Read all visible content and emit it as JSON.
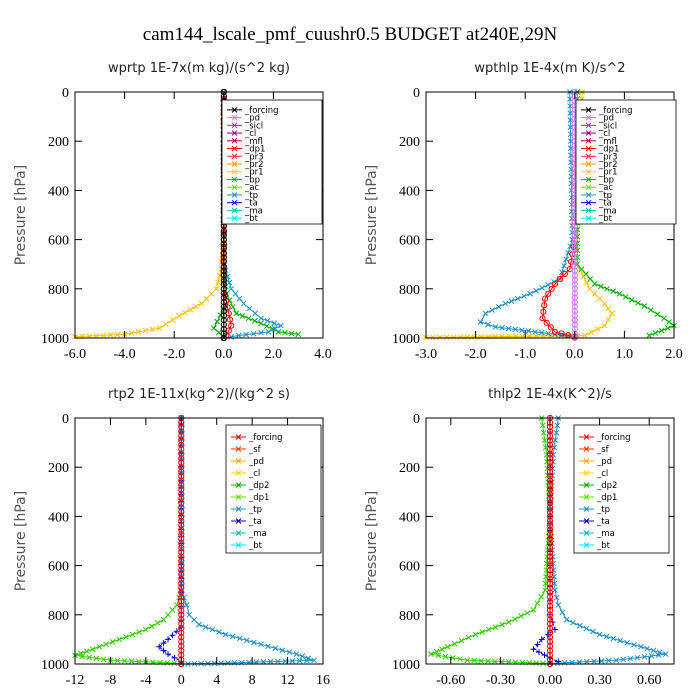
{
  "figure_title": "cam144_lscale_pmf_cuushr0.5  BUDGET at240E,29N",
  "y_axis_label": "Pressure [hPa]",
  "chart_data": [
    {
      "type": "line",
      "title": "wprtp   1E-7x(m kg)/(s^2 kg)",
      "ylabel": "Pressure [hPa]",
      "xlim": [
        -6,
        4
      ],
      "xticks": [
        -6,
        -4,
        -2,
        0,
        2,
        4
      ],
      "xtick_labels": [
        "-6.0",
        "-4.0",
        "-2.0",
        "0.0",
        "2.0",
        "4.0"
      ],
      "ylim": [
        1000,
        0
      ],
      "yticks": [
        0,
        200,
        400,
        600,
        800,
        1000
      ],
      "legend": [
        "_forcing",
        "_pd",
        "_sicl",
        "_cl",
        "_mfl",
        "_dp1",
        "_pr3",
        "_pr2",
        "_pr1",
        "_bp",
        "_ac",
        "_tp",
        "_ta",
        "_ma",
        "_bt"
      ],
      "legend_colors": [
        "#000000",
        "#c77fe0",
        "#8a2be2",
        "#8b008b",
        "#a0003c",
        "#ff0000",
        "#ff3333",
        "#ff9900",
        "#ffd000",
        "#00b000",
        "#66dd00",
        "#1e90c8",
        "#0000cc",
        "#00bfbf",
        "#00e0ff"
      ],
      "series": [
        {
          "name": "_pr1",
          "color": "#ffc000",
          "marker": "x",
          "points": [
            [
              0,
              0
            ],
            [
              0,
              600
            ],
            [
              -0.1,
              720
            ],
            [
              -0.3,
              800
            ],
            [
              -0.9,
              860
            ],
            [
              -1.8,
              910
            ],
            [
              -2.6,
              960
            ],
            [
              -4.0,
              985
            ],
            [
              -6.0,
              995
            ]
          ]
        },
        {
          "name": "_ac",
          "color": "#00b000",
          "marker": "x",
          "points": [
            [
              0,
              0
            ],
            [
              0,
              700
            ],
            [
              0.1,
              820
            ],
            [
              0.5,
              900
            ],
            [
              1.5,
              940
            ],
            [
              2.2,
              975
            ],
            [
              3.0,
              985
            ]
          ]
        },
        {
          "name": "_tp",
          "color": "#1e90c8",
          "marker": "x",
          "points": [
            [
              0,
              0
            ],
            [
              0,
              700
            ],
            [
              0.3,
              800
            ],
            [
              0.8,
              860
            ],
            [
              1.5,
              920
            ],
            [
              2.3,
              950
            ],
            [
              1.8,
              975
            ],
            [
              0.6,
              990
            ],
            [
              0,
              1000
            ]
          ]
        },
        {
          "name": "_dp1",
          "color": "#ff0000",
          "marker": "o",
          "points": [
            [
              0,
              0
            ],
            [
              0,
              800
            ],
            [
              0.2,
              900
            ],
            [
              0.3,
              950
            ],
            [
              0.1,
              990
            ],
            [
              0,
              1000
            ]
          ]
        },
        {
          "name": "_bp",
          "color": "#00a000",
          "marker": "x",
          "points": [
            [
              0,
              880
            ],
            [
              -0.4,
              960
            ],
            [
              0,
              995
            ]
          ]
        },
        {
          "name": "_forcing",
          "color": "#000000",
          "marker": "o",
          "points": [
            [
              0,
              0
            ],
            [
              0,
              1000
            ]
          ]
        }
      ]
    },
    {
      "type": "line",
      "title": "wpthlp   1E-4x(m K)/s^2",
      "ylabel": "Pressure [hPa]",
      "xlim": [
        -3,
        2
      ],
      "xticks": [
        -3,
        -2,
        -1,
        0,
        1,
        2
      ],
      "xtick_labels": [
        "-3.0",
        "-2.0",
        "-1.0",
        "0.0",
        "1.0",
        "2.0"
      ],
      "ylim": [
        1000,
        0
      ],
      "yticks": [
        0,
        200,
        400,
        600,
        800,
        1000
      ],
      "legend": [
        "_forcing",
        "_pd",
        "_sicl",
        "_cl",
        "_mfl",
        "_dp1",
        "_pr3",
        "_pr2",
        "_pr1",
        "_bp",
        "_ac",
        "_tp",
        "_ta",
        "_ma",
        "_bt"
      ],
      "legend_colors": [
        "#000000",
        "#c77fe0",
        "#8a2be2",
        "#8b008b",
        "#a0003c",
        "#ff0000",
        "#ff3333",
        "#ff9900",
        "#ffd000",
        "#00b000",
        "#66dd00",
        "#1e90c8",
        "#0000cc",
        "#00bfbf",
        "#00e0ff"
      ],
      "series": [
        {
          "name": "_pr1",
          "color": "#ffc000",
          "marker": "x",
          "points": [
            [
              0.15,
              0
            ],
            [
              0.1,
              200
            ],
            [
              0.05,
              500
            ],
            [
              0.05,
              700
            ],
            [
              0.3,
              800
            ],
            [
              0.6,
              860
            ],
            [
              0.75,
              900
            ],
            [
              0.6,
              950
            ],
            [
              0.2,
              990
            ],
            [
              -3.0,
              998
            ]
          ]
        },
        {
          "name": "_ac",
          "color": "#00b000",
          "marker": "x",
          "points": [
            [
              0.05,
              0
            ],
            [
              0.05,
              700
            ],
            [
              0.4,
              780
            ],
            [
              0.9,
              820
            ],
            [
              1.4,
              870
            ],
            [
              1.8,
              920
            ],
            [
              2.0,
              950
            ],
            [
              1.5,
              990
            ]
          ]
        },
        {
          "name": "_tp",
          "color": "#1e90c8",
          "marker": "x",
          "points": [
            [
              -0.1,
              0
            ],
            [
              -0.05,
              600
            ],
            [
              -0.3,
              760
            ],
            [
              -0.9,
              820
            ],
            [
              -1.4,
              860
            ],
            [
              -1.8,
              900
            ],
            [
              -1.9,
              935
            ],
            [
              -1.6,
              955
            ],
            [
              -0.8,
              975
            ],
            [
              0,
              995
            ]
          ]
        },
        {
          "name": "_dp1",
          "color": "#ff0000",
          "marker": "o",
          "points": [
            [
              0,
              600
            ],
            [
              -0.1,
              720
            ],
            [
              -0.4,
              780
            ],
            [
              -0.6,
              840
            ],
            [
              -0.65,
              920
            ],
            [
              -0.4,
              975
            ],
            [
              0,
              995
            ]
          ]
        },
        {
          "name": "_forcing",
          "color": "#c77fe0",
          "marker": "o",
          "points": [
            [
              0,
              0
            ],
            [
              0,
              1000
            ]
          ]
        }
      ]
    },
    {
      "type": "line",
      "title": "rtp2   1E-11x(kg^2)/(kg^2 s)",
      "ylabel": "Pressure [hPa]",
      "xlim": [
        -12,
        16
      ],
      "xticks": [
        -12,
        -8,
        -4,
        0,
        4,
        8,
        12,
        16
      ],
      "xtick_labels": [
        "-12",
        "-8",
        "-4",
        "0",
        "4",
        "8",
        "12",
        "16"
      ],
      "ylim": [
        1000,
        0
      ],
      "yticks": [
        0,
        200,
        400,
        600,
        800,
        1000
      ],
      "legend": [
        "_forcing",
        "_sf",
        "_pd",
        "_cl",
        "_dp2",
        "_dp1",
        "_tp",
        "_ta",
        "_ma",
        "_bt"
      ],
      "legend_colors": [
        "#ff0000",
        "#ff3300",
        "#ffa500",
        "#ffd000",
        "#00b000",
        "#66dd00",
        "#1e90c8",
        "#0000cc",
        "#00bfbf",
        "#00e0ff"
      ],
      "series": [
        {
          "name": "_dp1",
          "color": "#33cc00",
          "marker": "x",
          "points": [
            [
              0,
              0
            ],
            [
              0,
              700
            ],
            [
              -0.5,
              760
            ],
            [
              -2,
              820
            ],
            [
              -4,
              860
            ],
            [
              -7,
              900
            ],
            [
              -10,
              940
            ],
            [
              -12,
              965
            ],
            [
              -8,
              985
            ],
            [
              0,
              998
            ]
          ]
        },
        {
          "name": "_tp",
          "color": "#1e90c8",
          "marker": "x",
          "points": [
            [
              0,
              0
            ],
            [
              0,
              700
            ],
            [
              0.6,
              760
            ],
            [
              0.9,
              800
            ],
            [
              2,
              840
            ],
            [
              5,
              880
            ],
            [
              9,
              920
            ],
            [
              13,
              960
            ],
            [
              15,
              985
            ],
            [
              6,
              995
            ],
            [
              0,
              1000
            ]
          ]
        },
        {
          "name": "_ta",
          "color": "#0000cc",
          "marker": "+",
          "points": [
            [
              0,
              0
            ],
            [
              0,
              850
            ],
            [
              -1.5,
              900
            ],
            [
              -2.5,
              930
            ],
            [
              -1.5,
              960
            ],
            [
              0,
              990
            ]
          ]
        },
        {
          "name": "_forcing",
          "color": "#ff0000",
          "marker": "o",
          "points": [
            [
              0,
              0
            ],
            [
              0,
              1000
            ]
          ]
        }
      ]
    },
    {
      "type": "line",
      "title": "thlp2   1E-4x(K^2)/s",
      "ylabel": "Pressure [hPa]",
      "xlim": [
        -0.75,
        0.75
      ],
      "xticks": [
        -0.6,
        -0.3,
        0,
        0.3,
        0.6
      ],
      "xtick_labels": [
        "-0.60",
        "-0.30",
        "0.00",
        "0.30",
        "0.60"
      ],
      "ylim": [
        1000,
        0
      ],
      "yticks": [
        0,
        200,
        400,
        600,
        800,
        1000
      ],
      "legend": [
        "_forcing",
        "_sf",
        "_pd",
        "_cl",
        "_dp2",
        "_dp1",
        "_tp",
        "_ta",
        "_ma",
        "_bt"
      ],
      "legend_colors": [
        "#ff0000",
        "#ff3300",
        "#ffa500",
        "#ffd000",
        "#00b000",
        "#66dd00",
        "#1e90c8",
        "#0000cc",
        "#00bfbf",
        "#00e0ff"
      ],
      "series": [
        {
          "name": "_dp1",
          "color": "#33cc00",
          "marker": "x",
          "points": [
            [
              -0.05,
              0
            ],
            [
              -0.02,
              150
            ],
            [
              0,
              400
            ],
            [
              -0.03,
              700
            ],
            [
              -0.1,
              780
            ],
            [
              -0.25,
              830
            ],
            [
              -0.45,
              880
            ],
            [
              -0.62,
              930
            ],
            [
              -0.72,
              960
            ],
            [
              -0.5,
              985
            ],
            [
              0,
              998
            ]
          ]
        },
        {
          "name": "_tp",
          "color": "#1e90c8",
          "marker": "x",
          "points": [
            [
              0.05,
              0
            ],
            [
              0.02,
              150
            ],
            [
              0,
              400
            ],
            [
              0.03,
              700
            ],
            [
              0.05,
              760
            ],
            [
              0.1,
              820
            ],
            [
              0.3,
              880
            ],
            [
              0.55,
              930
            ],
            [
              0.7,
              960
            ],
            [
              0.4,
              985
            ],
            [
              0,
              998
            ]
          ]
        },
        {
          "name": "_ta",
          "color": "#0000cc",
          "marker": "+",
          "points": [
            [
              0,
              0
            ],
            [
              0,
              800
            ],
            [
              0.03,
              860
            ],
            [
              -0.05,
              900
            ],
            [
              -0.1,
              940
            ],
            [
              0,
              975
            ],
            [
              0.05,
              990
            ]
          ]
        },
        {
          "name": "_forcing",
          "color": "#ff0000",
          "marker": "o",
          "points": [
            [
              0,
              0
            ],
            [
              0,
              1000
            ]
          ]
        }
      ]
    }
  ]
}
